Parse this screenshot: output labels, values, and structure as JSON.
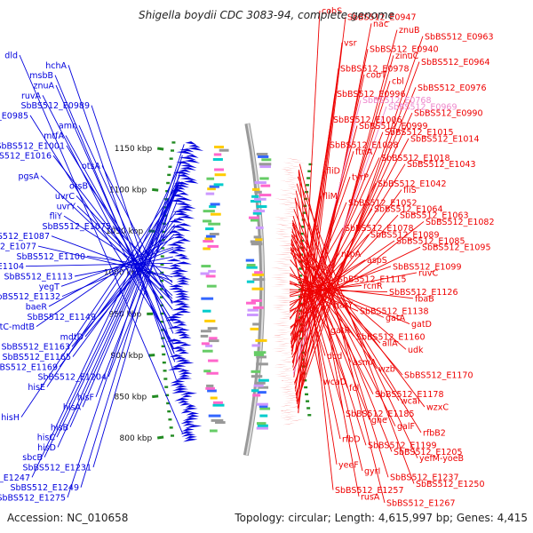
{
  "header": {
    "title": "Shigella boydii CDC 3083-94, complete genome"
  },
  "footer": {
    "accession": "Accession: NC_010658",
    "summary": "Topology: circular; Length: 4,615,997 bp; Genes: 4,415"
  },
  "colors": {
    "forward": "#0000dd",
    "reverse": "#ee0000",
    "pseudo": "#ee88cc",
    "backbone": "#999999",
    "ticks": "#228b22"
  },
  "ticks": [
    {
      "label": "800 kbp",
      "kbp": 800
    },
    {
      "label": "850 kbp",
      "kbp": 850
    },
    {
      "label": "900 kbp",
      "kbp": 900
    },
    {
      "label": "950 kbp",
      "kbp": 950
    },
    {
      "label": "1000 kbp",
      "kbp": 1000
    },
    {
      "label": "1050 kbp",
      "kbp": 1050
    },
    {
      "label": "1100 kbp",
      "kbp": 1100
    },
    {
      "label": "1150 kbp",
      "kbp": 1150
    }
  ],
  "forward_labels": [
    {
      "label": "dld",
      "kbp": 800
    },
    {
      "label": "hchA",
      "kbp": 868
    },
    {
      "label": "msbB",
      "kbp": 890
    },
    {
      "label": "znuA",
      "kbp": 900
    },
    {
      "label": "ruvA",
      "kbp": 906
    },
    {
      "label": "SbBS512_E0989",
      "kbp": 900
    },
    {
      "label": "SbBS512_E0985",
      "kbp": 912
    },
    {
      "label": "amn",
      "kbp": 925
    },
    {
      "label": "mtfA",
      "kbp": 932
    },
    {
      "label": "SbBS512_E1001",
      "kbp": 940
    },
    {
      "label": "SbBS512_E1016",
      "kbp": 955
    },
    {
      "label": "otsA",
      "kbp": 962
    },
    {
      "label": "pgsA",
      "kbp": 965
    },
    {
      "label": "otsB",
      "kbp": 964
    },
    {
      "label": "uvrC",
      "kbp": 968
    },
    {
      "label": "uvrY",
      "kbp": 972
    },
    {
      "label": "fliY",
      "kbp": 985
    },
    {
      "label": "SbBS512_E1075",
      "kbp": 988
    },
    {
      "label": "SbBS512_E1087",
      "kbp": 990
    },
    {
      "label": "SbBS512_E1077",
      "kbp": 995
    },
    {
      "label": "SbBS512_E1100",
      "kbp": 1005
    },
    {
      "label": "SbBS512_E1104",
      "kbp": 1012
    },
    {
      "label": "SbBS512_E1113",
      "kbp": 1020
    },
    {
      "label": "yegT",
      "kbp": 1032
    },
    {
      "label": "SbBS512_E1132",
      "kbp": 1030
    },
    {
      "label": "baeR",
      "kbp": 1044
    },
    {
      "label": "SbBS512_E1149",
      "kbp": 1048
    },
    {
      "label": "baeS-mdtC-mdtB",
      "kbp": 1052
    },
    {
      "label": "mdtD",
      "kbp": 1056
    },
    {
      "label": "SbBS512_E1163",
      "kbp": 1060
    },
    {
      "label": "SbBS512_E1165",
      "kbp": 1067
    },
    {
      "label": "SbBS512_E1169",
      "kbp": 1075
    },
    {
      "label": "SbBS512_E1204",
      "kbp": 1088
    },
    {
      "label": "hisE",
      "kbp": 1102
    },
    {
      "label": "hisF",
      "kbp": 1108
    },
    {
      "label": "hisA",
      "kbp": 1110
    },
    {
      "label": "hisH",
      "kbp": 1111
    },
    {
      "label": "hisB",
      "kbp": 1112
    },
    {
      "label": "hisC",
      "kbp": 1113
    },
    {
      "label": "hisD",
      "kbp": 1114
    },
    {
      "label": "sbcB",
      "kbp": 1120
    },
    {
      "label": "SbBS512_E1231",
      "kbp": 1126
    },
    {
      "label": "SbBS512_E1247",
      "kbp": 1138
    },
    {
      "label": "SbBS512_E1249",
      "kbp": 1146
    },
    {
      "label": "SbBS512_E1275",
      "kbp": 1160
    }
  ],
  "reverse_labels": [
    {
      "label": "cobS",
      "kbp": 805
    },
    {
      "label": "SbBS512_E0947",
      "kbp": 806
    },
    {
      "label": "nac",
      "kbp": 812
    },
    {
      "label": "znuB",
      "kbp": 818
    },
    {
      "label": "SbBS512_E0963",
      "kbp": 820
    },
    {
      "label": "vsr",
      "kbp": 822
    },
    {
      "label": "SbBS512_E0940",
      "kbp": 826
    },
    {
      "label": "zinuC",
      "kbp": 830
    },
    {
      "label": "SbBS512_E0964",
      "kbp": 832
    },
    {
      "label": "SbBS512_E0978",
      "kbp": 836
    },
    {
      "label": "cobT",
      "kbp": 840
    },
    {
      "label": "cbl",
      "kbp": 846
    },
    {
      "label": "SbBS512_E0976",
      "kbp": 848
    },
    {
      "label": "SbBS512_E0996",
      "kbp": 856
    },
    {
      "label": "SbBS512_E0768",
      "kbp": 860,
      "pseudo": true
    },
    {
      "label": "SbBS512_E0969",
      "kbp": 862,
      "pseudo": true
    },
    {
      "label": "SbBS512_E0990",
      "kbp": 866
    },
    {
      "label": "SbBS512_E1006",
      "kbp": 870
    },
    {
      "label": "SbBS512_E0999",
      "kbp": 876
    },
    {
      "label": "SbBS512_E1015",
      "kbp": 878
    },
    {
      "label": "SbBS512_E1014",
      "kbp": 884
    },
    {
      "label": "SbBS512_E1028",
      "kbp": 888
    },
    {
      "label": "ftnA",
      "kbp": 893
    },
    {
      "label": "SbBS512_E1018",
      "kbp": 897
    },
    {
      "label": "SbBS512_E1043",
      "kbp": 898
    },
    {
      "label": "fliD",
      "kbp": 899
    },
    {
      "label": "tyrP",
      "kbp": 903
    },
    {
      "label": "SbBS512_E1042",
      "kbp": 904
    },
    {
      "label": "fliS",
      "kbp": 905
    },
    {
      "label": "fliM",
      "kbp": 906
    },
    {
      "label": "SbBS512_E1052",
      "kbp": 915
    },
    {
      "label": "SbBS512_E1064",
      "kbp": 917
    },
    {
      "label": "SbBS512_E1063",
      "kbp": 925
    },
    {
      "label": "SbBS512_E1082",
      "kbp": 927
    },
    {
      "label": "SbBS512_E1078",
      "kbp": 938
    },
    {
      "label": "SbBS512_E1089",
      "kbp": 940
    },
    {
      "label": "SbBS512_E1085",
      "kbp": 948
    },
    {
      "label": "SbBS512_E1095",
      "kbp": 950
    },
    {
      "label": "ntpA",
      "kbp": 952
    },
    {
      "label": "aspS",
      "kbp": 958
    },
    {
      "label": "SbBS512_E1099",
      "kbp": 962
    },
    {
      "label": "ruvC",
      "kbp": 970
    },
    {
      "label": "SbBS512_E1115",
      "kbp": 972
    },
    {
      "label": "rcnR",
      "kbp": 976
    },
    {
      "label": "SbBS512_E1126",
      "kbp": 980
    },
    {
      "label": "fbaB",
      "kbp": 988
    },
    {
      "label": "gatY",
      "kbp": 990
    },
    {
      "label": "SbBS512_E1138",
      "kbp": 992
    },
    {
      "label": "gatA",
      "kbp": 1000
    },
    {
      "label": "gatD",
      "kbp": 1002
    },
    {
      "label": "gatR",
      "kbp": 1012
    },
    {
      "label": "SbBS512_E1160",
      "kbp": 1022
    },
    {
      "label": "allA",
      "kbp": 1032
    },
    {
      "label": "udk",
      "kbp": 1036
    },
    {
      "label": "dcd",
      "kbp": 1038
    },
    {
      "label": "asmA",
      "kbp": 1040
    },
    {
      "label": "wzb",
      "kbp": 1044
    },
    {
      "label": "SbBS512_E1170",
      "kbp": 1046
    },
    {
      "label": "wcaD",
      "kbp": 1050
    },
    {
      "label": "fcl",
      "kbp": 1052
    },
    {
      "label": "SbBS512_E1178",
      "kbp": 1056
    },
    {
      "label": "wcaI",
      "kbp": 1058
    },
    {
      "label": "wzxC",
      "kbp": 1062
    },
    {
      "label": "SbBS512_E1185",
      "kbp": 1066
    },
    {
      "label": "gne",
      "kbp": 1072
    },
    {
      "label": "galF",
      "kbp": 1074
    },
    {
      "label": "rfbB2",
      "kbp": 1076
    },
    {
      "label": "rfbD",
      "kbp": 1078
    },
    {
      "label": "SbBS512_E1199",
      "kbp": 1084
    },
    {
      "label": "SbBS512_E1205",
      "kbp": 1094
    },
    {
      "label": "yefM-yoeB",
      "kbp": 1108
    },
    {
      "label": "yeeF",
      "kbp": 1110
    },
    {
      "label": "gyrI",
      "kbp": 1120
    },
    {
      "label": "SbBS512_E1237",
      "kbp": 1130
    },
    {
      "label": "SbBS512_E1250",
      "kbp": 1140
    },
    {
      "label": "SbBS512_E1257",
      "kbp": 1148
    },
    {
      "label": "rusA",
      "kbp": 1150
    },
    {
      "label": "SbBS512_E1267",
      "kbp": 1158
    }
  ]
}
